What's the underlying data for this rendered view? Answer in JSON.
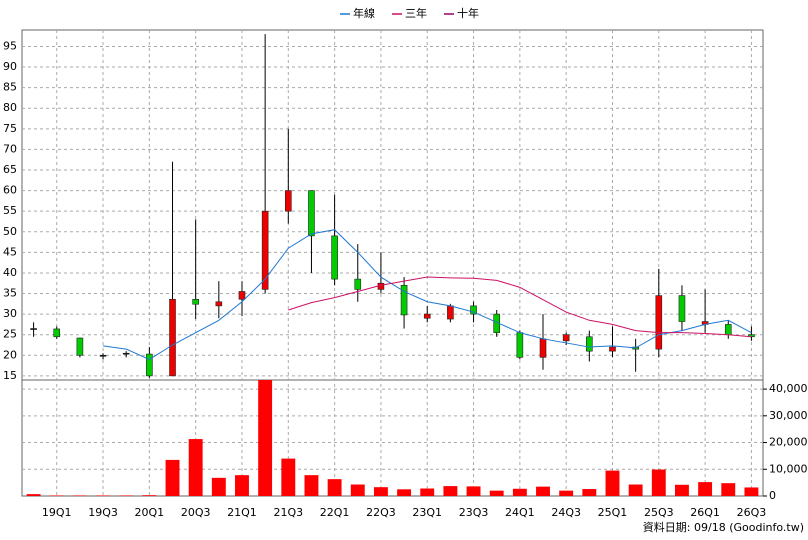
{
  "chart_data": [
    {
      "type": "candlestick",
      "categories": [
        null,
        "19Q1",
        null,
        "19Q3",
        null,
        "20Q1",
        null,
        "20Q3",
        null,
        "21Q1",
        null,
        "21Q3",
        null,
        "22Q1",
        null,
        "22Q3",
        null,
        "23Q1",
        null,
        "23Q3",
        null,
        "24Q1",
        null,
        "24Q3",
        null,
        "25Q1",
        null,
        "25Q3",
        null,
        "26Q1",
        null,
        "26Q3"
      ],
      "open": [
        26.5,
        26.4,
        24.2,
        20,
        20.5,
        20.3,
        15,
        33.6,
        32,
        33.6,
        36,
        55,
        60,
        49,
        38.5,
        36,
        37,
        29,
        28.8,
        32,
        30,
        25.5,
        19.5,
        23.5,
        24.5,
        21,
        22,
        21.5,
        34.5,
        27.5,
        27.5,
        25
      ],
      "high": [
        28,
        27,
        24.3,
        20.5,
        21,
        22,
        67,
        53,
        38,
        38,
        98,
        75,
        60,
        59,
        47,
        45,
        39,
        32,
        32.5,
        33,
        31,
        26,
        30,
        25.5,
        26,
        27,
        24,
        41,
        37,
        36,
        28.5,
        27
      ],
      "low": [
        24.5,
        24,
        19.5,
        19,
        19.5,
        14.5,
        15,
        28.8,
        29,
        29.5,
        35,
        52,
        40,
        37,
        33,
        35,
        26.5,
        28,
        28,
        28,
        24.5,
        19,
        16.5,
        22.5,
        18.5,
        19.5,
        16,
        19.5,
        26,
        25.5,
        24,
        23.5
      ],
      "close": [
        26.5,
        24.5,
        20,
        20,
        20.5,
        15,
        33.6,
        32.4,
        33,
        35.5,
        55,
        60,
        49,
        38.5,
        36,
        37.5,
        29.8,
        30,
        32,
        30,
        25.5,
        19.5,
        24,
        25,
        21,
        22,
        21.5,
        34.5,
        28.2,
        28.2,
        25,
        24.5
      ],
      "up_color": "#ee0000",
      "down_color": "#00cc00",
      "flat_color": "#000000",
      "series": [
        {
          "name": "年線",
          "color": "#1f78d1",
          "values": [
            null,
            null,
            null,
            22.3,
            21.5,
            19,
            22.5,
            25.5,
            28.5,
            33,
            38.5,
            46,
            49.5,
            50.5,
            45,
            39,
            35.5,
            33,
            32,
            30.5,
            28,
            25.5,
            24,
            23,
            22,
            22.3,
            21.8,
            25,
            26,
            27.5,
            28.5,
            25.5
          ]
        },
        {
          "name": "三年",
          "color": "#cc1166",
          "values": [
            null,
            null,
            null,
            null,
            null,
            null,
            null,
            null,
            null,
            null,
            null,
            31,
            32.8,
            34,
            35.5,
            37,
            38,
            39,
            38.8,
            38.7,
            38.2,
            36.5,
            33.5,
            30.5,
            28.5,
            27.5,
            26,
            25.5,
            25.5,
            25.3,
            25,
            24.5
          ]
        },
        {
          "name": "十年",
          "color": "#990066",
          "values": [
            null,
            null,
            null,
            null,
            null,
            null,
            null,
            null,
            null,
            null,
            null,
            null,
            null,
            null,
            null,
            null,
            null,
            null,
            null,
            null,
            null,
            null,
            null,
            null,
            null,
            null,
            null,
            null,
            null,
            null,
            null,
            null
          ]
        }
      ],
      "ylim": [
        14,
        99
      ],
      "yticks": [
        15,
        20,
        25,
        30,
        35,
        40,
        45,
        50,
        55,
        60,
        65,
        70,
        75,
        80,
        85,
        90,
        95
      ],
      "grid": true,
      "source": "資料日期: 09/18 (Goodinfo.tw)"
    },
    {
      "type": "bar",
      "color": "#ff0000",
      "values": [
        700,
        200,
        200,
        200,
        200,
        300,
        13500,
        21300,
        6800,
        7800,
        43400,
        14000,
        7800,
        6300,
        4300,
        3300,
        2500,
        2800,
        3700,
        3600,
        2000,
        2700,
        3500,
        2000,
        2600,
        9500,
        4300,
        9900,
        4200,
        5200,
        4800,
        3200
      ],
      "ylim": [
        0,
        43400
      ],
      "yticks": [
        0,
        {
          "value": 10000,
          "label": "10,000"
        },
        {
          "value": 20000,
          "label": "20,000"
        },
        {
          "value": 30000,
          "label": "30,000"
        },
        {
          "value": 40000,
          "label": "40,000"
        }
      ],
      "grid": true
    }
  ]
}
